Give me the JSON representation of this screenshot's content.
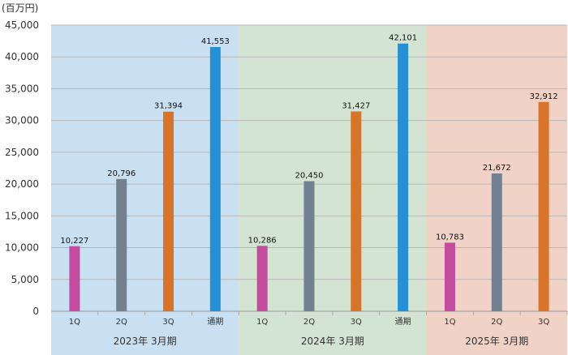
{
  "chart_data": {
    "type": "bar",
    "unit": "(百万円)",
    "ylim": [
      0,
      45000
    ],
    "yticks": [
      0,
      5000,
      10000,
      15000,
      20000,
      25000,
      30000,
      35000,
      40000,
      45000
    ],
    "ytick_labels": [
      "0",
      "5,000",
      "10,000",
      "15,000",
      "20,000",
      "25,000",
      "30,000",
      "35,000",
      "40,000",
      "45,000"
    ],
    "grid": true,
    "groups": [
      {
        "label": "2023年 3月期",
        "background": "#c9e0f2",
        "bars": [
          {
            "category": "1Q",
            "value": 10227,
            "label": "10,227",
            "color": "#c34c9e"
          },
          {
            "category": "2Q",
            "value": 20796,
            "label": "20,796",
            "color": "#72808f"
          },
          {
            "category": "3Q",
            "value": 31394,
            "label": "31,394",
            "color": "#d7742a"
          },
          {
            "category": "通期",
            "value": 41553,
            "label": "41,553",
            "color": "#2490d6"
          }
        ]
      },
      {
        "label": "2024年 3月期",
        "background": "#d3e5d2",
        "bars": [
          {
            "category": "1Q",
            "value": 10286,
            "label": "10,286",
            "color": "#c34c9e"
          },
          {
            "category": "2Q",
            "value": 20450,
            "label": "20,450",
            "color": "#72808f"
          },
          {
            "category": "3Q",
            "value": 31427,
            "label": "31,427",
            "color": "#d7742a"
          },
          {
            "category": "通期",
            "value": 42101,
            "label": "42,101",
            "color": "#2490d6"
          }
        ]
      },
      {
        "label": "2025年 3月期",
        "background": "#f0d2c6",
        "bars": [
          {
            "category": "1Q",
            "value": 10783,
            "label": "10,783",
            "color": "#c34c9e"
          },
          {
            "category": "2Q",
            "value": 21672,
            "label": "21,672",
            "color": "#72808f"
          },
          {
            "category": "3Q",
            "value": 32912,
            "label": "32,912",
            "color": "#d7742a"
          }
        ]
      }
    ]
  }
}
